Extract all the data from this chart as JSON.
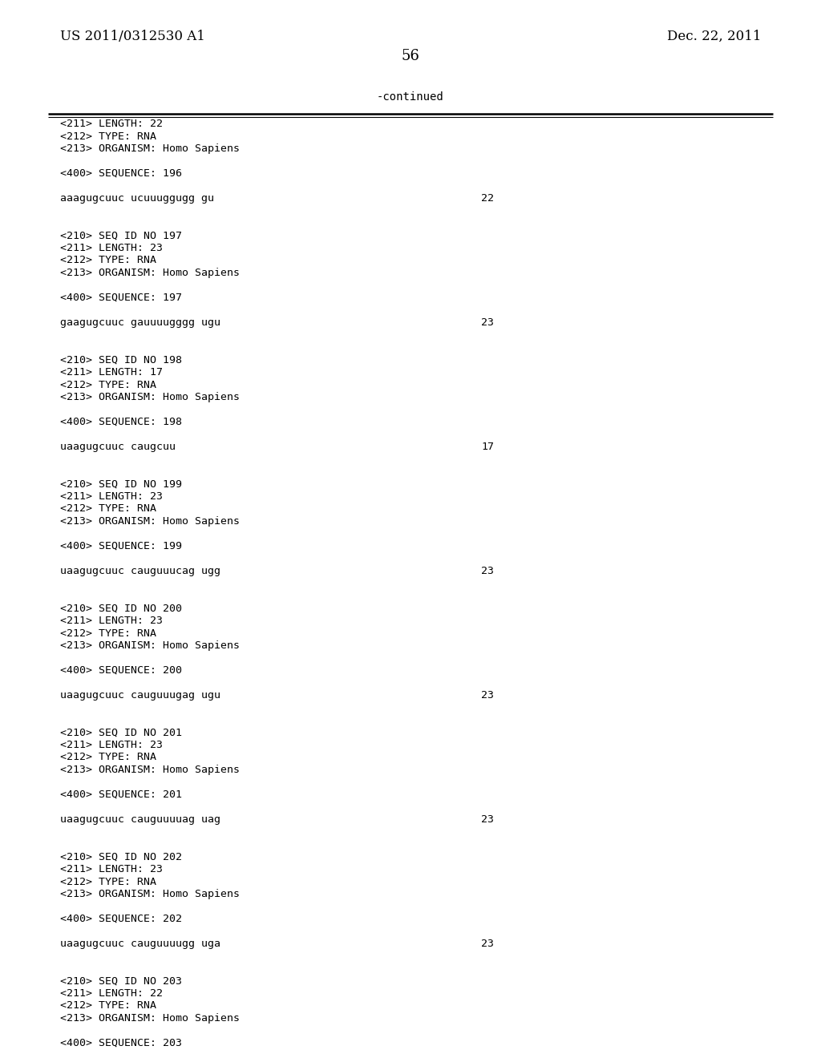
{
  "header_left": "US 2011/0312530 A1",
  "header_right": "Dec. 22, 2011",
  "page_number": "56",
  "continued_label": "-continued",
  "bg_color": "#ffffff",
  "text_color": "#000000",
  "content_lines": [
    {
      "text": "<211> LENGTH: 22",
      "num": null
    },
    {
      "text": "<212> TYPE: RNA",
      "num": null
    },
    {
      "text": "<213> ORGANISM: Homo Sapiens",
      "num": null
    },
    {
      "text": "",
      "num": null
    },
    {
      "text": "<400> SEQUENCE: 196",
      "num": null
    },
    {
      "text": "",
      "num": null
    },
    {
      "text": "aaagugcuuc ucuuuggugg gu",
      "num": "22"
    },
    {
      "text": "",
      "num": null
    },
    {
      "text": "",
      "num": null
    },
    {
      "text": "<210> SEQ ID NO 197",
      "num": null
    },
    {
      "text": "<211> LENGTH: 23",
      "num": null
    },
    {
      "text": "<212> TYPE: RNA",
      "num": null
    },
    {
      "text": "<213> ORGANISM: Homo Sapiens",
      "num": null
    },
    {
      "text": "",
      "num": null
    },
    {
      "text": "<400> SEQUENCE: 197",
      "num": null
    },
    {
      "text": "",
      "num": null
    },
    {
      "text": "gaagugcuuc gauuuugggg ugu",
      "num": "23"
    },
    {
      "text": "",
      "num": null
    },
    {
      "text": "",
      "num": null
    },
    {
      "text": "<210> SEQ ID NO 198",
      "num": null
    },
    {
      "text": "<211> LENGTH: 17",
      "num": null
    },
    {
      "text": "<212> TYPE: RNA",
      "num": null
    },
    {
      "text": "<213> ORGANISM: Homo Sapiens",
      "num": null
    },
    {
      "text": "",
      "num": null
    },
    {
      "text": "<400> SEQUENCE: 198",
      "num": null
    },
    {
      "text": "",
      "num": null
    },
    {
      "text": "uaagugcuuc caugcuu",
      "num": "17"
    },
    {
      "text": "",
      "num": null
    },
    {
      "text": "",
      "num": null
    },
    {
      "text": "<210> SEQ ID NO 199",
      "num": null
    },
    {
      "text": "<211> LENGTH: 23",
      "num": null
    },
    {
      "text": "<212> TYPE: RNA",
      "num": null
    },
    {
      "text": "<213> ORGANISM: Homo Sapiens",
      "num": null
    },
    {
      "text": "",
      "num": null
    },
    {
      "text": "<400> SEQUENCE: 199",
      "num": null
    },
    {
      "text": "",
      "num": null
    },
    {
      "text": "uaagugcuuc cauguuucag ugg",
      "num": "23"
    },
    {
      "text": "",
      "num": null
    },
    {
      "text": "",
      "num": null
    },
    {
      "text": "<210> SEQ ID NO 200",
      "num": null
    },
    {
      "text": "<211> LENGTH: 23",
      "num": null
    },
    {
      "text": "<212> TYPE: RNA",
      "num": null
    },
    {
      "text": "<213> ORGANISM: Homo Sapiens",
      "num": null
    },
    {
      "text": "",
      "num": null
    },
    {
      "text": "<400> SEQUENCE: 200",
      "num": null
    },
    {
      "text": "",
      "num": null
    },
    {
      "text": "uaagugcuuc cauguuugag ugu",
      "num": "23"
    },
    {
      "text": "",
      "num": null
    },
    {
      "text": "",
      "num": null
    },
    {
      "text": "<210> SEQ ID NO 201",
      "num": null
    },
    {
      "text": "<211> LENGTH: 23",
      "num": null
    },
    {
      "text": "<212> TYPE: RNA",
      "num": null
    },
    {
      "text": "<213> ORGANISM: Homo Sapiens",
      "num": null
    },
    {
      "text": "",
      "num": null
    },
    {
      "text": "<400> SEQUENCE: 201",
      "num": null
    },
    {
      "text": "",
      "num": null
    },
    {
      "text": "uaagugcuuc cauguuuuag uag",
      "num": "23"
    },
    {
      "text": "",
      "num": null
    },
    {
      "text": "",
      "num": null
    },
    {
      "text": "<210> SEQ ID NO 202",
      "num": null
    },
    {
      "text": "<211> LENGTH: 23",
      "num": null
    },
    {
      "text": "<212> TYPE: RNA",
      "num": null
    },
    {
      "text": "<213> ORGANISM: Homo Sapiens",
      "num": null
    },
    {
      "text": "",
      "num": null
    },
    {
      "text": "<400> SEQUENCE: 202",
      "num": null
    },
    {
      "text": "",
      "num": null
    },
    {
      "text": "uaagugcuuc cauguuuugg uga",
      "num": "23"
    },
    {
      "text": "",
      "num": null
    },
    {
      "text": "",
      "num": null
    },
    {
      "text": "<210> SEQ ID NO 203",
      "num": null
    },
    {
      "text": "<211> LENGTH: 22",
      "num": null
    },
    {
      "text": "<212> TYPE: RNA",
      "num": null
    },
    {
      "text": "<213> ORGANISM: Homo Sapiens",
      "num": null
    },
    {
      "text": "",
      "num": null
    },
    {
      "text": "<400> SEQUENCE: 203",
      "num": null
    }
  ]
}
